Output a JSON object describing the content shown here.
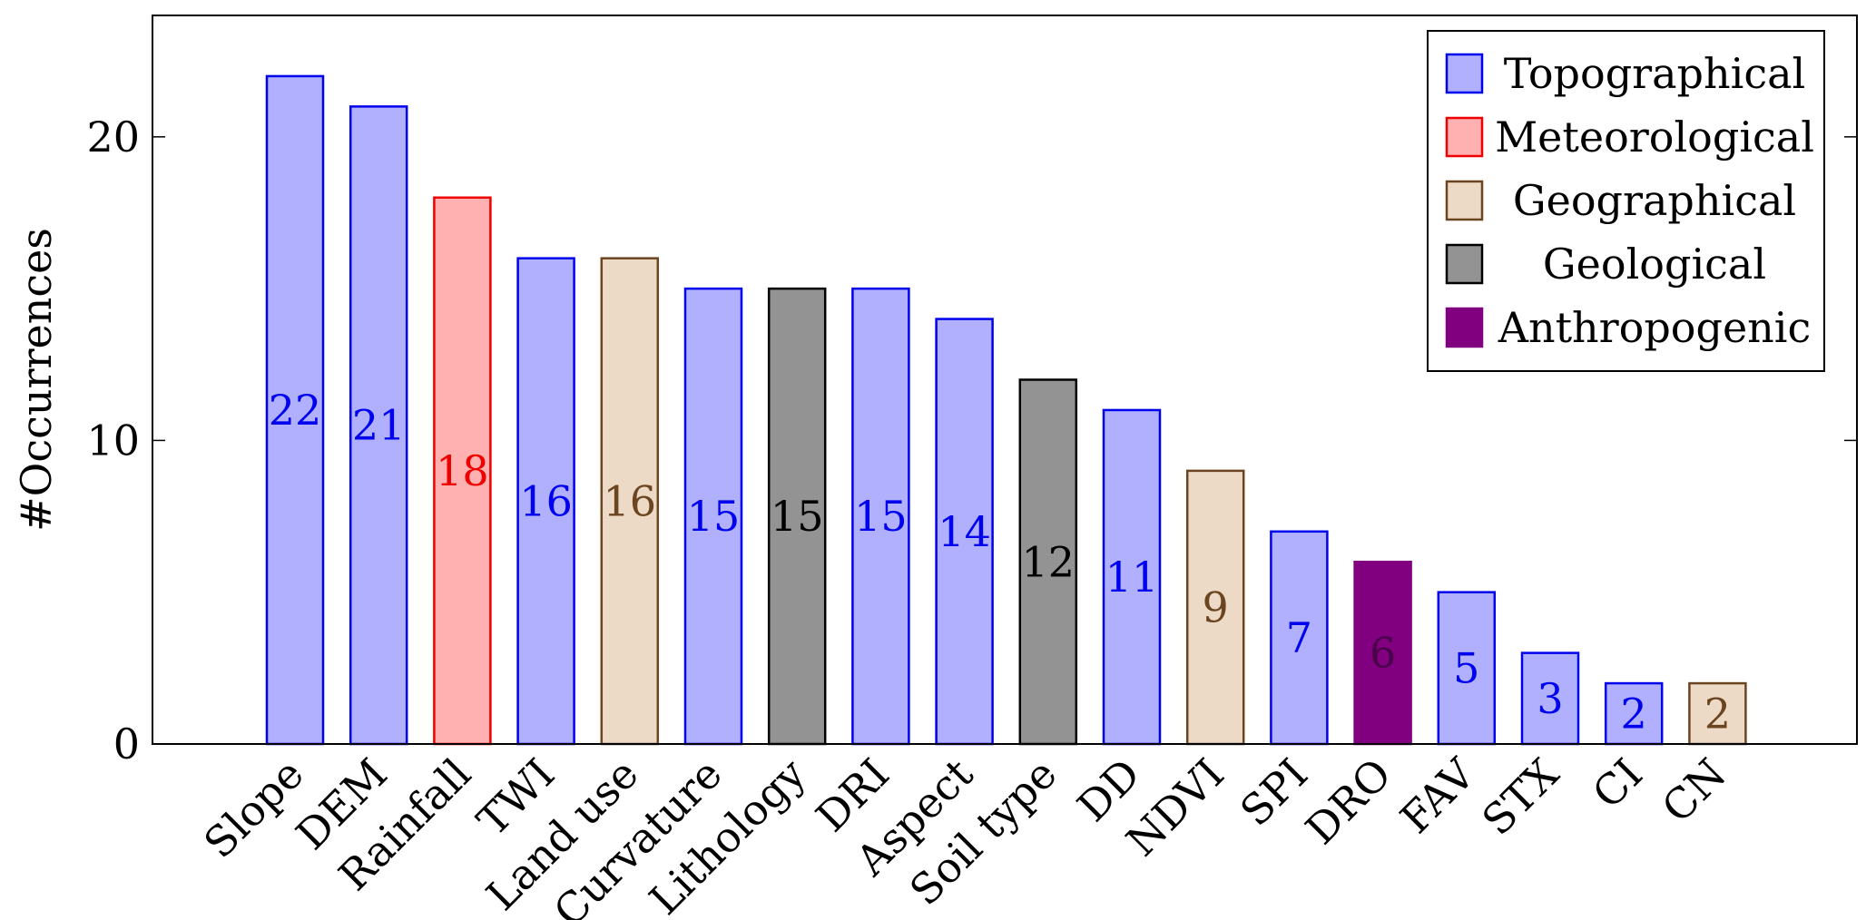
{
  "chart_data": {
    "type": "bar",
    "ylabel": "#Occurrences",
    "ylim": [
      0,
      24
    ],
    "yticks": [
      0,
      10,
      20
    ],
    "legend_position": "top-right",
    "grid": false,
    "categories": [
      "Slope",
      "DEM",
      "Rainfall",
      "TWI",
      "Land use",
      "Curvature",
      "Lithology",
      "DRI",
      "Aspect",
      "Soil type",
      "DD",
      "NDVI",
      "SPI",
      "DRO",
      "FAV",
      "STX",
      "CI",
      "CN"
    ],
    "values": [
      22,
      21,
      18,
      16,
      16,
      15,
      15,
      15,
      14,
      12,
      11,
      9,
      7,
      6,
      5,
      3,
      2,
      2
    ],
    "groups": [
      "Topographical",
      "Topographical",
      "Meteorological",
      "Topographical",
      "Geographical",
      "Topographical",
      "Geological",
      "Topographical",
      "Topographical",
      "Geological",
      "Topographical",
      "Geographical",
      "Topographical",
      "Anthropogenic",
      "Topographical",
      "Topographical",
      "Topographical",
      "Geographical"
    ],
    "legend": [
      {
        "name": "Topographical",
        "fill": "#b0b0ff",
        "stroke": "#0000ee",
        "label_color": "#0000ee"
      },
      {
        "name": "Meteorological",
        "fill": "#ffb0b0",
        "stroke": "#ee0000",
        "label_color": "#ee0000"
      },
      {
        "name": "Geographical",
        "fill": "#ecd9c6",
        "stroke": "#6b4520",
        "label_color": "#6b4520"
      },
      {
        "name": "Geological",
        "fill": "#939393",
        "stroke": "#000000",
        "label_color": "#000000"
      },
      {
        "name": "Anthropogenic",
        "fill": "#800080",
        "stroke": "#800080",
        "label_color": "#4a004a"
      }
    ]
  }
}
